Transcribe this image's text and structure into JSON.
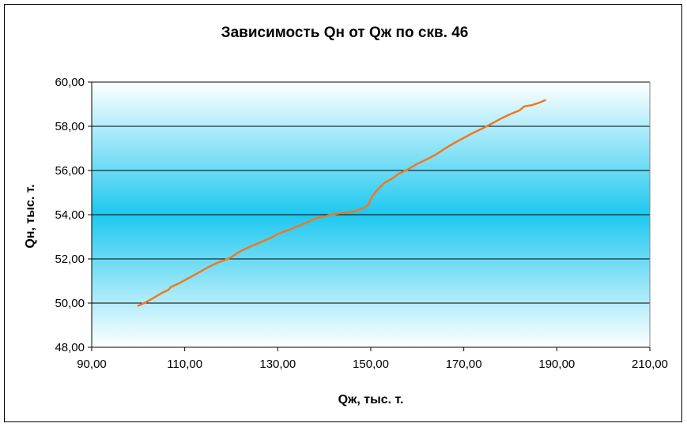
{
  "chart_data": {
    "type": "line",
    "title": "Зависимость Qн от Qж по скв. 46",
    "xlabel": "Qж, тыс. т.",
    "ylabel": "Qн, тыс. т.",
    "xlim": [
      90,
      210
    ],
    "ylim": [
      48,
      60
    ],
    "x_ticks": [
      "90,00",
      "110,00",
      "130,00",
      "150,00",
      "170,00",
      "190,00",
      "210,00"
    ],
    "y_ticks": [
      "48,00",
      "50,00",
      "52,00",
      "54,00",
      "56,00",
      "58,00",
      "60,00"
    ],
    "grid": "horizontal",
    "legend": "none",
    "series": [
      {
        "color": "#f07820",
        "x": [
          100.0,
          101.5,
          103.0,
          105.0,
          106.5,
          107.0,
          109.0,
          111.0,
          113.0,
          115.0,
          117.0,
          119.0,
          120.0,
          122.0,
          124.0,
          126.0,
          128.0,
          130.0,
          132.0,
          134.0,
          136.0,
          138.0,
          140.0,
          142.0,
          144.0,
          146.0,
          147.0,
          148.5,
          149.5,
          150.0,
          151.0,
          152.0,
          153.0,
          154.5,
          156.0,
          158.0,
          160.0,
          162.0,
          164.0,
          166.0,
          168.0,
          170.0,
          172.0,
          174.0,
          176.0,
          178.0,
          180.0,
          182.0,
          183.0,
          184.5,
          186.0,
          187.5
        ],
        "y": [
          49.88,
          50.02,
          50.2,
          50.45,
          50.6,
          50.72,
          50.92,
          51.15,
          51.38,
          51.62,
          51.82,
          51.98,
          52.08,
          52.35,
          52.55,
          52.72,
          52.9,
          53.12,
          53.28,
          53.45,
          53.62,
          53.82,
          53.92,
          54.02,
          54.08,
          54.12,
          54.2,
          54.3,
          54.45,
          54.72,
          55.02,
          55.25,
          55.45,
          55.62,
          55.85,
          56.05,
          56.3,
          56.5,
          56.72,
          57.0,
          57.25,
          57.48,
          57.7,
          57.9,
          58.12,
          58.35,
          58.55,
          58.72,
          58.9,
          58.95,
          59.05,
          59.18
        ]
      }
    ]
  }
}
